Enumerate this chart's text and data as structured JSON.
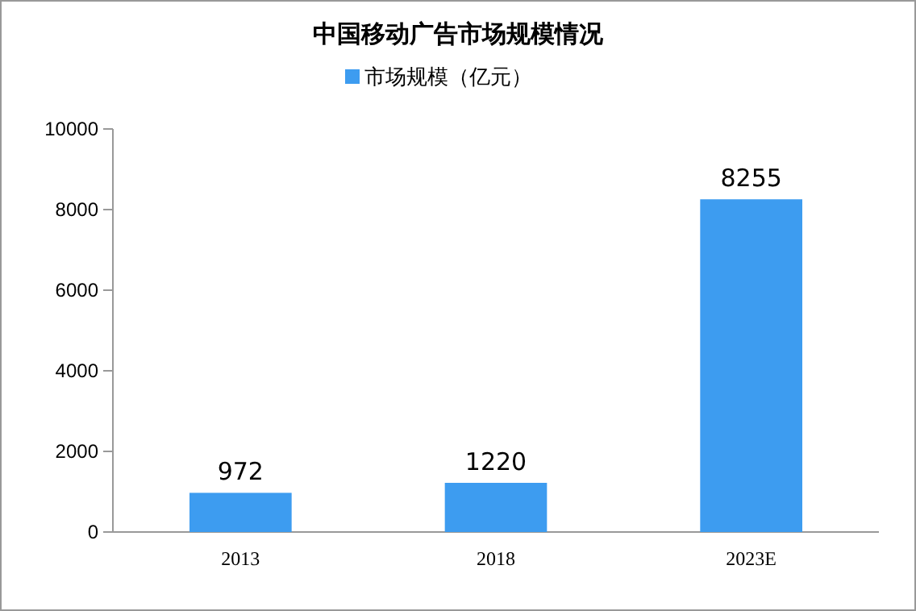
{
  "chart_data": {
    "type": "bar",
    "title": "中国移动广告市场规模情况",
    "categories": [
      "2013",
      "2018",
      "2023E"
    ],
    "series": [
      {
        "name": "市场规模（亿元）",
        "color": "#3d9cf0",
        "values": [
          972,
          1220,
          8255
        ]
      }
    ],
    "ylim": [
      0,
      10000
    ],
    "yticks": [
      0,
      2000,
      4000,
      6000,
      8000,
      10000
    ],
    "data_labels": true,
    "legend": "top",
    "grid": false
  }
}
